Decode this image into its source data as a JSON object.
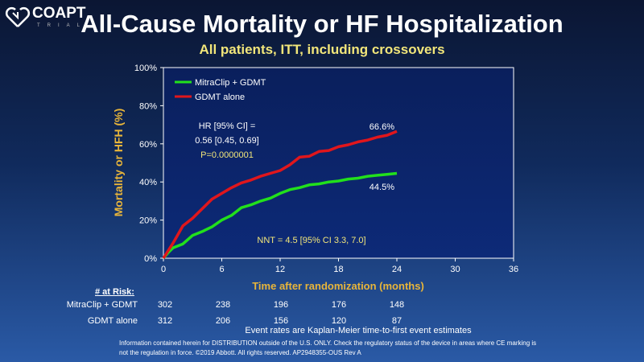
{
  "logo": {
    "name": "COAPT",
    "sub": "TRIAL"
  },
  "title": "All-Cause Mortality or HF Hospitalization",
  "subtitle": "All patients, ITT, including crossovers",
  "chart_data": {
    "type": "line",
    "title": "All-Cause Mortality or HF Hospitalization",
    "xlabel": "Time after randomization (months)",
    "ylabel": "Mortality or HFH (%)",
    "xlim": [
      0,
      36
    ],
    "ylim": [
      0,
      100
    ],
    "xticks": [
      "0",
      "6",
      "12",
      "18",
      "24",
      "30",
      "36"
    ],
    "yticks": [
      "0%",
      "20%",
      "40%",
      "60%",
      "80%",
      "100%"
    ],
    "legend_position": "top-left",
    "series": [
      {
        "name": "MitraClip + GDMT",
        "color": "#22e01c",
        "end_label": "44.5%",
        "x": [
          0,
          0.5,
          1,
          2,
          3,
          4,
          5,
          6,
          7,
          8,
          9,
          10,
          11,
          12,
          13,
          14,
          15,
          16,
          17,
          18,
          19,
          20,
          21,
          22,
          23,
          24
        ],
        "y": [
          0,
          3,
          5.5,
          7.5,
          12,
          14,
          16.5,
          20,
          22.5,
          26.5,
          28,
          30,
          31.5,
          34,
          36,
          37,
          38.5,
          39,
          40,
          40.5,
          41.5,
          42,
          43,
          43.5,
          44,
          44.5
        ]
      },
      {
        "name": "GDMT alone",
        "color": "#e0161c",
        "end_label": "66.6%",
        "x": [
          0,
          0.5,
          1,
          2,
          3,
          4,
          5,
          6,
          7,
          8,
          9,
          10,
          11,
          12,
          13,
          14,
          15,
          16,
          17,
          18,
          19,
          20,
          21,
          22,
          23,
          24
        ],
        "y": [
          0,
          4,
          8,
          17,
          21,
          26,
          31,
          34,
          37,
          39.5,
          41,
          43,
          44.5,
          46,
          49,
          53,
          53.5,
          56,
          56.5,
          58.5,
          59.5,
          61,
          62,
          63.5,
          64.5,
          66.6
        ]
      }
    ],
    "annotations": {
      "hr_line1": "HR [95% CI] =",
      "hr_line2": "0.56 [0.45, 0.69]",
      "p": "P=0.0000001",
      "nnt": "NNT = 4.5 [95% CI 3.3, 7.0]"
    }
  },
  "at_risk": {
    "header": "# at Risk:",
    "rows": [
      {
        "label": "MitraClip  + GDMT",
        "values": [
          "302",
          "238",
          "196",
          "176",
          "148"
        ]
      },
      {
        "label": "GDMT  alone",
        "values": [
          "312",
          "206",
          "156",
          "120",
          "87"
        ]
      }
    ]
  },
  "footer": {
    "note": "Event rates are Kaplan-Meier  time-to-first event estimates",
    "legal": "Information contained herein for DISTRIBUTION outside of the U.S. ONLY. Check the regulatory status of the device in areas where CE marking is not the regulation in force. ©2019 Abbott. All rights reserved. AP2948355-OUS Rev A"
  }
}
